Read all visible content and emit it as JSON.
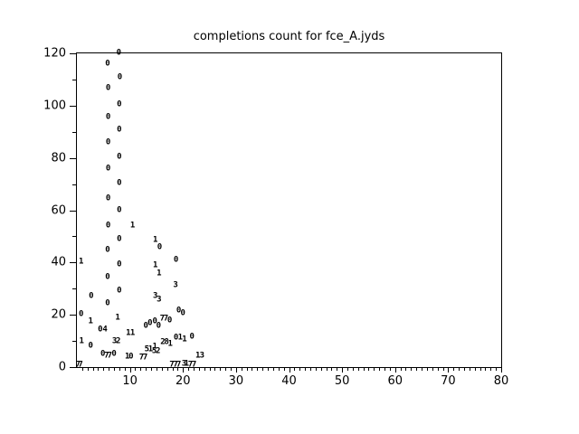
{
  "title": "completions count for fce_A.jyds",
  "colors": {
    "background": "#ffffff",
    "axis": "#000000",
    "text": "#000000"
  },
  "chart_data": {
    "type": "scatter",
    "title": "completions count for fce_A.jyds",
    "xlabel": "",
    "ylabel": "",
    "xlim": [
      0,
      80
    ],
    "ylim": [
      0,
      120
    ],
    "grid": false,
    "legend": "none",
    "x_major_ticks": [
      10,
      20,
      30,
      40,
      50,
      60,
      70,
      80
    ],
    "x_minor_tick_step": 1,
    "y_major_ticks": [
      0,
      20,
      40,
      60,
      80,
      100,
      120
    ],
    "y_minor_ticks": [
      10,
      30,
      50,
      70,
      90,
      110
    ],
    "marker_style": "digit-glyph",
    "points": [
      {
        "x": 7.9,
        "y": 120.0,
        "label": "0"
      },
      {
        "x": 5.8,
        "y": 115.9,
        "label": "0"
      },
      {
        "x": 8.1,
        "y": 110.7,
        "label": "0"
      },
      {
        "x": 5.9,
        "y": 106.4,
        "label": "0"
      },
      {
        "x": 8.0,
        "y": 100.3,
        "label": "0"
      },
      {
        "x": 5.9,
        "y": 95.5,
        "label": "0"
      },
      {
        "x": 8.0,
        "y": 90.7,
        "label": "0"
      },
      {
        "x": 5.9,
        "y": 85.9,
        "label": "0"
      },
      {
        "x": 8.0,
        "y": 80.4,
        "label": "0"
      },
      {
        "x": 5.9,
        "y": 75.6,
        "label": "0"
      },
      {
        "x": 8.0,
        "y": 70.1,
        "label": "0"
      },
      {
        "x": 5.9,
        "y": 64.2,
        "label": "0"
      },
      {
        "x": 8.0,
        "y": 59.7,
        "label": "0"
      },
      {
        "x": 5.9,
        "y": 53.9,
        "label": "0"
      },
      {
        "x": 8.0,
        "y": 48.7,
        "label": "0"
      },
      {
        "x": 5.8,
        "y": 44.7,
        "label": "0"
      },
      {
        "x": 8.0,
        "y": 39.2,
        "label": "0"
      },
      {
        "x": 5.8,
        "y": 34.4,
        "label": "0"
      },
      {
        "x": 8.0,
        "y": 29.2,
        "label": "0"
      },
      {
        "x": 5.8,
        "y": 24.3,
        "label": "0"
      },
      {
        "x": 7.7,
        "y": 18.8,
        "label": "1"
      },
      {
        "x": 0.8,
        "y": 40.1,
        "label": "1"
      },
      {
        "x": 2.7,
        "y": 26.9,
        "label": "0"
      },
      {
        "x": 0.8,
        "y": 19.9,
        "label": "0"
      },
      {
        "x": 2.6,
        "y": 17.3,
        "label": "1"
      },
      {
        "x": 0.9,
        "y": 9.7,
        "label": "1"
      },
      {
        "x": 2.6,
        "y": 7.9,
        "label": "0"
      },
      {
        "x": 4.4,
        "y": 14.2,
        "label": "0"
      },
      {
        "x": 5.3,
        "y": 14.2,
        "label": "4"
      },
      {
        "x": 9.7,
        "y": 12.7,
        "label": "1"
      },
      {
        "x": 10.5,
        "y": 12.7,
        "label": "1"
      },
      {
        "x": 7.1,
        "y": 9.6,
        "label": "3"
      },
      {
        "x": 7.8,
        "y": 9.6,
        "label": "2"
      },
      {
        "x": 4.9,
        "y": 4.7,
        "label": "0"
      },
      {
        "x": 5.6,
        "y": 4.1,
        "label": "7"
      },
      {
        "x": 6.2,
        "y": 4.1,
        "label": "7"
      },
      {
        "x": 7.0,
        "y": 4.7,
        "label": "0"
      },
      {
        "x": 9.5,
        "y": 3.9,
        "label": "1"
      },
      {
        "x": 10.2,
        "y": 3.9,
        "label": "0"
      },
      {
        "x": 12.2,
        "y": 3.3,
        "label": "7"
      },
      {
        "x": 12.9,
        "y": 3.3,
        "label": "7"
      },
      {
        "x": 0.2,
        "y": 0.8,
        "label": "7"
      },
      {
        "x": 0.7,
        "y": 0.8,
        "label": "7"
      },
      {
        "x": 10.5,
        "y": 53.9,
        "label": "1"
      },
      {
        "x": 14.8,
        "y": 48.4,
        "label": "1"
      },
      {
        "x": 15.6,
        "y": 45.5,
        "label": "0"
      },
      {
        "x": 18.7,
        "y": 40.7,
        "label": "0"
      },
      {
        "x": 14.8,
        "y": 38.6,
        "label": "1"
      },
      {
        "x": 15.5,
        "y": 35.5,
        "label": "1"
      },
      {
        "x": 18.6,
        "y": 31.2,
        "label": "3"
      },
      {
        "x": 14.8,
        "y": 27.1,
        "label": "3"
      },
      {
        "x": 15.5,
        "y": 25.7,
        "label": "3"
      },
      {
        "x": 13.0,
        "y": 15.7,
        "label": "0"
      },
      {
        "x": 13.8,
        "y": 16.5,
        "label": "0"
      },
      {
        "x": 14.7,
        "y": 17.3,
        "label": "0"
      },
      {
        "x": 15.4,
        "y": 15.7,
        "label": "0"
      },
      {
        "x": 16.1,
        "y": 18.5,
        "label": "7"
      },
      {
        "x": 16.8,
        "y": 18.5,
        "label": "7"
      },
      {
        "x": 17.5,
        "y": 17.8,
        "label": "0"
      },
      {
        "x": 19.2,
        "y": 21.5,
        "label": "0"
      },
      {
        "x": 20.0,
        "y": 20.5,
        "label": "0"
      },
      {
        "x": 18.7,
        "y": 11.1,
        "label": "0"
      },
      {
        "x": 19.5,
        "y": 11.1,
        "label": "1"
      },
      {
        "x": 20.3,
        "y": 10.3,
        "label": "1"
      },
      {
        "x": 21.7,
        "y": 11.4,
        "label": "0"
      },
      {
        "x": 16.2,
        "y": 9.5,
        "label": "2"
      },
      {
        "x": 16.9,
        "y": 9.5,
        "label": "8"
      },
      {
        "x": 17.6,
        "y": 8.5,
        "label": "1"
      },
      {
        "x": 14.7,
        "y": 7.7,
        "label": "1"
      },
      {
        "x": 13.2,
        "y": 6.5,
        "label": "5"
      },
      {
        "x": 13.9,
        "y": 6.5,
        "label": "1"
      },
      {
        "x": 14.6,
        "y": 6.0,
        "label": "5"
      },
      {
        "x": 15.3,
        "y": 6.0,
        "label": "2"
      },
      {
        "x": 22.8,
        "y": 4.0,
        "label": "1"
      },
      {
        "x": 23.6,
        "y": 4.0,
        "label": "3"
      },
      {
        "x": 17.9,
        "y": 0.6,
        "label": "7"
      },
      {
        "x": 18.6,
        "y": 0.6,
        "label": "7"
      },
      {
        "x": 19.2,
        "y": 0.6,
        "label": "7"
      },
      {
        "x": 20.2,
        "y": 1.2,
        "label": "3"
      },
      {
        "x": 20.7,
        "y": 1.0,
        "label": "1"
      },
      {
        "x": 21.4,
        "y": 0.6,
        "label": "7"
      },
      {
        "x": 22.1,
        "y": 0.6,
        "label": "7"
      }
    ]
  }
}
